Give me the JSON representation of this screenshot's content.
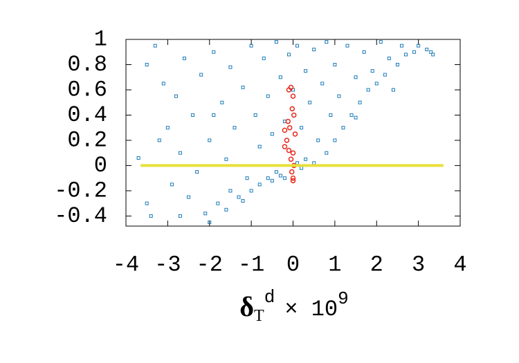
{
  "chart_data": {
    "type": "scatter",
    "xlabel": {
      "symbol": "δ",
      "subscript": "T",
      "superscript": "d",
      "times": "× 10",
      "exponent": "9"
    },
    "xlim": [
      -4,
      4
    ],
    "ylim": [
      -0.48,
      1
    ],
    "xticks": [
      -4,
      -3,
      -2,
      -1,
      0,
      1,
      2,
      3,
      4
    ],
    "yticks": [
      -0.4,
      -0.2,
      0,
      0.2,
      0.4,
      0.6,
      0.8,
      1
    ],
    "series": [
      {
        "color": "#1a7ab8",
        "marker": "square",
        "x": [
          -3.7,
          -3.5,
          -3.3,
          -3.5,
          -3.4,
          -3.1,
          -3.0,
          -2.9,
          -2.8,
          -2.7,
          -2.6,
          -2.5,
          -2.4,
          -2.3,
          -2.2,
          -2.1,
          -2.0,
          -2.0,
          -1.9,
          -1.8,
          -1.7,
          -1.6,
          -1.5,
          -1.5,
          -1.4,
          -1.3,
          -1.2,
          -1.1,
          -1.0,
          -1.0,
          -0.9,
          -0.8,
          -0.8,
          -0.7,
          -0.6,
          -0.6,
          -0.5,
          -0.4,
          -0.4,
          -0.3,
          -0.3,
          -0.2,
          -0.1,
          0,
          0.1,
          0.1,
          0.2,
          0.3,
          0.3,
          0.4,
          0.5,
          0.5,
          0.6,
          0.7,
          0.8,
          0.8,
          0.9,
          1.0,
          1.0,
          1.1,
          1.2,
          1.3,
          1.4,
          1.5,
          1.6,
          1.7,
          1.8,
          1.9,
          2.0,
          2.1,
          2.2,
          2.3,
          2.5,
          2.6,
          2.7,
          2.9,
          3.0,
          3.2,
          3.35,
          3.3,
          -1.6,
          -1.2,
          -0.2,
          0.2,
          1.5,
          2.4,
          -0.5,
          -1.9,
          -2.7,
          -3.2
        ],
        "values": [
          0.06,
          0.8,
          0.95,
          -0.3,
          -0.4,
          0.65,
          0.3,
          -0.15,
          0.55,
          0.1,
          0.85,
          -0.25,
          0.4,
          -0.05,
          0.72,
          -0.38,
          0.2,
          -0.45,
          0.9,
          -0.3,
          0.5,
          0.05,
          -0.2,
          0.78,
          0.3,
          -0.25,
          0.62,
          -0.1,
          0.95,
          -0.2,
          0.4,
          -0.15,
          0.15,
          0.85,
          -0.1,
          0.55,
          0.25,
          -0.05,
          0.98,
          0.7,
          -0.08,
          0.35,
          0.88,
          0.6,
          0.02,
          0.95,
          0.3,
          0.05,
          0.75,
          0.5,
          0.02,
          0.92,
          0.2,
          0.65,
          0.1,
          0.98,
          0.4,
          0.2,
          0.8,
          0.55,
          0.3,
          0.95,
          0.4,
          0.7,
          0.5,
          0.9,
          0.6,
          0.75,
          0.65,
          0.98,
          0.72,
          0.85,
          0.8,
          0.95,
          0.88,
          0.9,
          0.95,
          0.92,
          0.88,
          0.9,
          -0.35,
          -0.28,
          -0.1,
          -0.02,
          0.38,
          0.6,
          -0.12,
          0.4,
          -0.4,
          0.2
        ]
      },
      {
        "color": "#e8281c",
        "marker": "circle",
        "x": [
          -0.05,
          0,
          -0.02,
          0.02,
          -0.08,
          -0.2,
          -0.15,
          -0.1,
          0,
          -0.05,
          0.02,
          -0.03,
          0,
          -0.2,
          -0.12,
          0.05,
          -0.1,
          0
        ],
        "values": [
          0.62,
          0.55,
          0.45,
          0.4,
          0.3,
          0.28,
          0.2,
          0.12,
          0.1,
          0.05,
          0,
          -0.05,
          -0.1,
          0.15,
          0.35,
          0.25,
          0.6,
          -0.12
        ]
      },
      {
        "color": "#e8e03a",
        "marker": "line",
        "x": [
          -3.65,
          3.6
        ],
        "values": [
          0,
          0
        ]
      }
    ]
  }
}
